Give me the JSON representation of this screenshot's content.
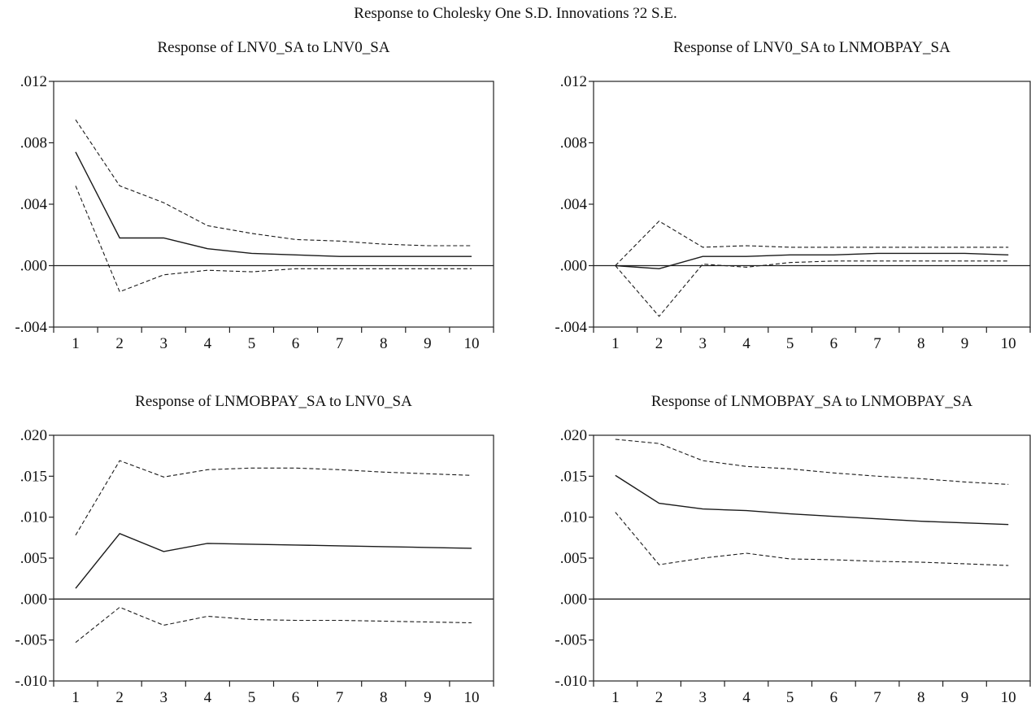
{
  "figure_title": "Response to Cholesky One S.D. Innovations ?2 S.E.",
  "chart_data": [
    {
      "type": "line",
      "title": "Response of LNV0_SA to LNV0_SA",
      "x": [
        1,
        2,
        3,
        4,
        5,
        6,
        7,
        8,
        9,
        10
      ],
      "ylim": [
        -0.004,
        0.012
      ],
      "yticks": [
        ".012",
        ".008",
        ".004",
        ".000",
        "-.004"
      ],
      "ytick_values": [
        0.012,
        0.008,
        0.004,
        0.0,
        -0.004
      ],
      "series": [
        {
          "values": [
            0.0074,
            0.0018,
            0.0018,
            0.0011,
            0.0008,
            0.0007,
            0.0006,
            0.0006,
            0.0006,
            0.0006
          ]
        },
        {
          "values": [
            0.0095,
            0.0052,
            0.0041,
            0.0026,
            0.0021,
            0.0017,
            0.0016,
            0.0014,
            0.0013,
            0.0013
          ]
        },
        {
          "values": [
            0.0052,
            -0.0017,
            -0.0006,
            -0.0003,
            -0.0004,
            -0.0002,
            -0.0002,
            -0.0002,
            -0.0002,
            -0.0002
          ]
        }
      ]
    },
    {
      "type": "line",
      "title": "Response of LNV0_SA to LNMOBPAY_SA",
      "x": [
        1,
        2,
        3,
        4,
        5,
        6,
        7,
        8,
        9,
        10
      ],
      "ylim": [
        -0.004,
        0.012
      ],
      "yticks": [
        ".012",
        ".008",
        ".004",
        ".000",
        "-.004"
      ],
      "ytick_values": [
        0.012,
        0.008,
        0.004,
        0.0,
        -0.004
      ],
      "series": [
        {
          "values": [
            0.0,
            -0.0002,
            0.0006,
            0.0006,
            0.0007,
            0.0007,
            0.0008,
            0.0008,
            0.0008,
            0.0007
          ]
        },
        {
          "values": [
            0.0,
            0.0029,
            0.0012,
            0.0013,
            0.0012,
            0.0012,
            0.0012,
            0.0012,
            0.0012,
            0.0012
          ]
        },
        {
          "values": [
            0.0,
            -0.0033,
            0.0001,
            -0.0001,
            0.0002,
            0.0003,
            0.0003,
            0.0003,
            0.0003,
            0.0003
          ]
        }
      ]
    },
    {
      "type": "line",
      "title": "Response of LNMOBPAY_SA to LNV0_SA",
      "x": [
        1,
        2,
        3,
        4,
        5,
        6,
        7,
        8,
        9,
        10
      ],
      "ylim": [
        -0.01,
        0.02
      ],
      "yticks": [
        ".020",
        ".015",
        ".010",
        ".005",
        ".000",
        "-.005",
        "-.010"
      ],
      "ytick_values": [
        0.02,
        0.015,
        0.01,
        0.005,
        0.0,
        -0.005,
        -0.01
      ],
      "series": [
        {
          "values": [
            0.0013,
            0.008,
            0.0058,
            0.0068,
            0.0067,
            0.0066,
            0.0065,
            0.0064,
            0.0063,
            0.0062
          ]
        },
        {
          "values": [
            0.0078,
            0.0169,
            0.0149,
            0.0158,
            0.016,
            0.016,
            0.0158,
            0.0155,
            0.0153,
            0.0151
          ]
        },
        {
          "values": [
            -0.0053,
            -0.001,
            -0.0032,
            -0.0021,
            -0.0025,
            -0.0026,
            -0.0026,
            -0.0027,
            -0.0028,
            -0.0029
          ]
        }
      ]
    },
    {
      "type": "line",
      "title": "Response of LNMOBPAY_SA to LNMOBPAY_SA",
      "x": [
        1,
        2,
        3,
        4,
        5,
        6,
        7,
        8,
        9,
        10
      ],
      "ylim": [
        -0.01,
        0.02
      ],
      "yticks": [
        ".020",
        ".015",
        ".010",
        ".005",
        ".000",
        "-.005",
        "-.010"
      ],
      "ytick_values": [
        0.02,
        0.015,
        0.01,
        0.005,
        0.0,
        -0.005,
        -0.01
      ],
      "series": [
        {
          "values": [
            0.0151,
            0.0117,
            0.011,
            0.0108,
            0.0104,
            0.0101,
            0.0098,
            0.0095,
            0.0093,
            0.0091
          ]
        },
        {
          "values": [
            0.0195,
            0.019,
            0.0169,
            0.0162,
            0.0159,
            0.0154,
            0.015,
            0.0147,
            0.0143,
            0.014
          ]
        },
        {
          "values": [
            0.0106,
            0.0042,
            0.005,
            0.0056,
            0.0049,
            0.0048,
            0.0046,
            0.0045,
            0.0043,
            0.0041
          ]
        }
      ]
    }
  ]
}
